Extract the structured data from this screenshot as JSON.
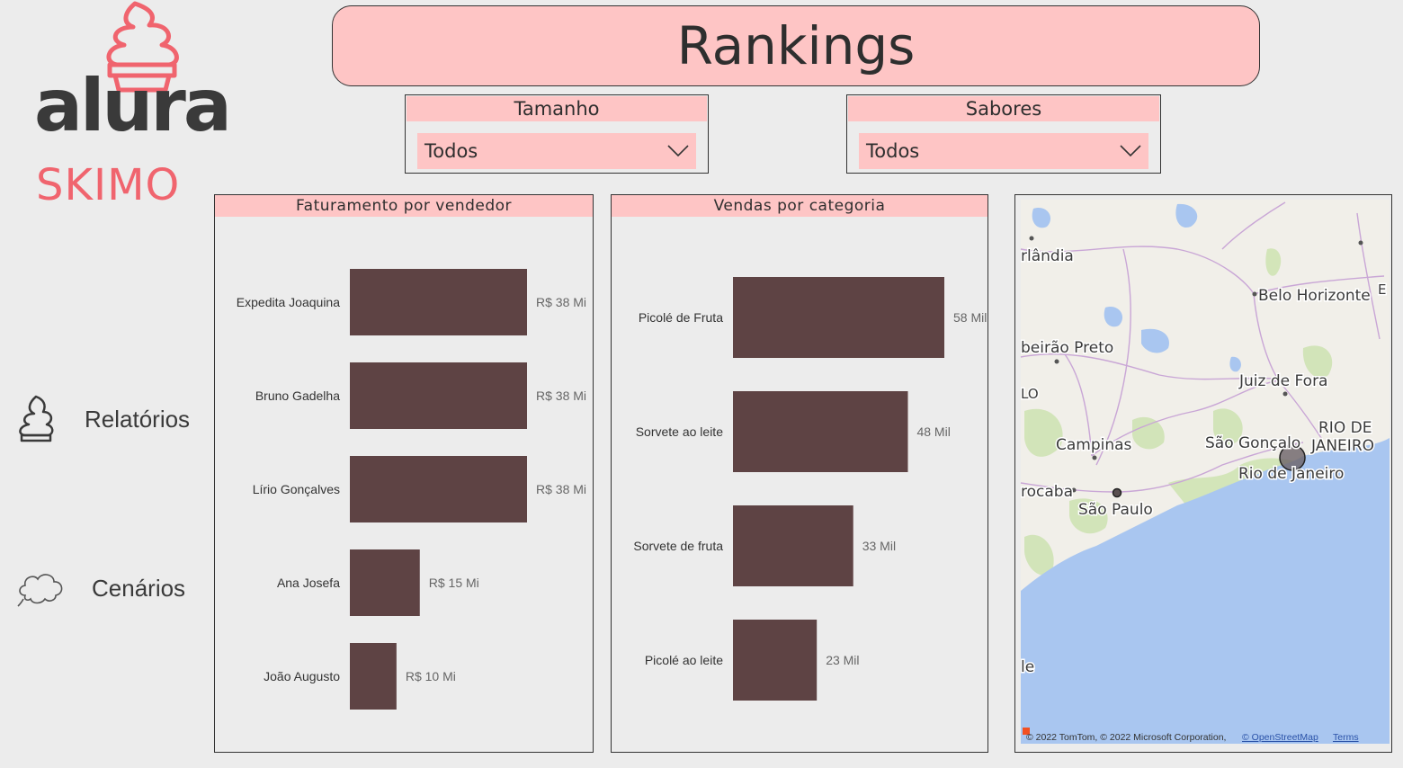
{
  "brand": {
    "word": "alura",
    "sub": "SKIMO",
    "accent": "#f0646e"
  },
  "nav": [
    {
      "label": "Relatórios",
      "icon": "ice-cream-icon"
    },
    {
      "label": "Cenários",
      "icon": "cloud-icon"
    }
  ],
  "header": {
    "title": "Rankings"
  },
  "filters": {
    "tamanho": {
      "label": "Tamanho",
      "value": "Todos"
    },
    "sabores": {
      "label": "Sabores",
      "value": "Todos"
    }
  },
  "colors": {
    "bar": "#5e4344",
    "header_bg": "#fec5c5",
    "page_bg": "#ececec",
    "water": "#a9c6f0"
  },
  "chart_data": [
    {
      "type": "bar",
      "orientation": "horizontal",
      "title": "Faturamento por vendedor",
      "categories": [
        "Expedita Joaquina",
        "Bruno Gadelha",
        "Lírio Gonçalves",
        "Ana Josefa",
        "João Augusto"
      ],
      "values": [
        38,
        38,
        38,
        15,
        10
      ],
      "data_labels": [
        "R$ 38 Mi",
        "R$ 38 Mi",
        "R$ 38 Mi",
        "R$ 15 Mi",
        "R$ 10 Mi"
      ],
      "unit": "R$ Mi"
    },
    {
      "type": "bar",
      "orientation": "horizontal",
      "title": "Vendas por categoria",
      "categories": [
        "Picolé de Fruta",
        "Sorvete ao leite",
        "Sorvete de fruta",
        "Picolé ao leite"
      ],
      "values": [
        58,
        48,
        33,
        23
      ],
      "data_labels": [
        "58 Mil",
        "48 Mil",
        "33 Mil",
        "23 Mil"
      ],
      "unit": "Mil"
    }
  ],
  "map": {
    "labels": {
      "uberlandia": "rlândia",
      "belo_horizonte": "Belo Horizonte",
      "e": "E",
      "ribeirao_preto": "beirão Preto",
      "lo": "LO",
      "juiz_de_fora": "Juiz de Fora",
      "campinas": "Campinas",
      "sao_goncalo": "São Gonçalo",
      "rio_de": "RIO DE",
      "janeiro": "JANEIRO",
      "rio_de_janeiro": "Rio de Janeiro",
      "sorocaba": "rocaba",
      "sao_paulo": "São Paulo",
      "le": "le"
    },
    "attribution": "© 2022 TomTom, © 2022 Microsoft Corporation,",
    "osm_link": "© OpenStreetMap",
    "terms_link": "Terms"
  }
}
